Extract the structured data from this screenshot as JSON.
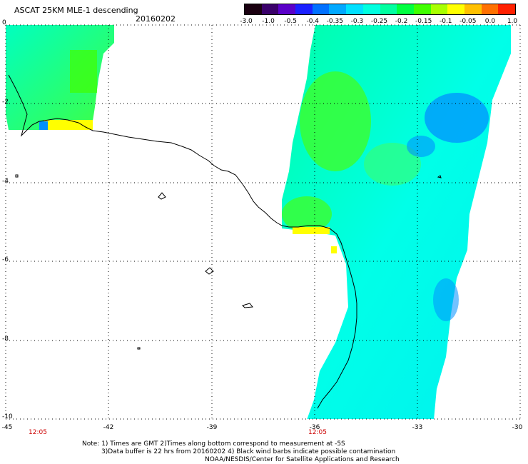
{
  "header": {
    "title": "ASCAT 25KM MLE-1 descending",
    "date": "20160202"
  },
  "colorbar": {
    "labels": [
      "-3.0",
      "-1.0",
      "-0.5",
      "-0.4",
      "-0.35",
      "-0.3",
      "-0.25",
      "-0.2",
      "-0.15",
      "-0.1",
      "-0.05",
      "0.0",
      "1.0"
    ],
    "colors": [
      "#1a0010",
      "#3a006a",
      "#5a00c8",
      "#1a20ff",
      "#0070ff",
      "#00a8ff",
      "#00e0ff",
      "#00ffe0",
      "#00ffa0",
      "#00ff40",
      "#40ff00",
      "#a8ff00",
      "#ffff00",
      "#ffc000",
      "#ff7000",
      "#ff2000"
    ]
  },
  "map": {
    "y_labels": [
      "0",
      "-2",
      "-4",
      "-6",
      "-8",
      "-10"
    ],
    "x_labels": [
      "-45",
      "-42",
      "-39",
      "-36",
      "-33",
      "-30"
    ],
    "pass_times": [
      "12:05",
      "12:05"
    ]
  },
  "footer": {
    "line1": "Note: 1) Times are GMT 2)Times along bottom correspond to measurement at -5S",
    "line2": "3)Data buffer is 22 hrs from 20160202 4) Black wind barbs indicate possible contamination",
    "line3": "NOAA/NESDIS/Center for Satellite Applications and Research"
  }
}
